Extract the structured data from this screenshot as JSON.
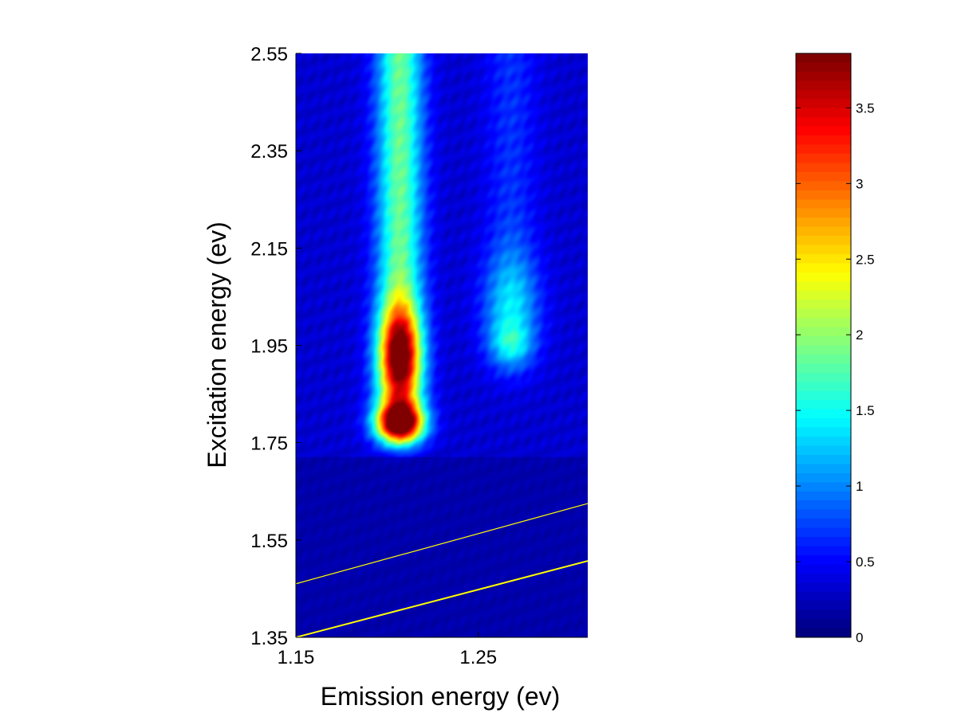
{
  "chart_data": [
    {
      "type": "heatmap",
      "title": "",
      "xlabel": "Emission energy (ev)",
      "ylabel": "Excitation energy (ev)",
      "xlim": [
        1.15,
        1.31
      ],
      "ylim": [
        1.35,
        2.55
      ],
      "xticks": [
        1.15,
        1.25
      ],
      "xtick_labels": [
        "1.15",
        "1.25"
      ],
      "yticks": [
        1.35,
        1.55,
        1.75,
        1.95,
        2.15,
        2.35,
        2.55
      ],
      "ytick_labels": [
        "1.35",
        "1.55",
        "1.75",
        "1.95",
        "2.15",
        "2.35",
        "2.55"
      ],
      "colormap": "jet",
      "background_level": 0.3,
      "features": [
        {
          "kind": "peak",
          "x": 1.207,
          "y": 1.79,
          "amplitude": 3.6,
          "sigma_x": 0.009,
          "sigma_y": 0.028
        },
        {
          "kind": "peak",
          "x": 1.207,
          "y": 1.93,
          "amplitude": 2.6,
          "sigma_x": 0.008,
          "sigma_y": 0.07
        },
        {
          "kind": "vertical_band",
          "x": 1.207,
          "y_from": 1.72,
          "y_to": 2.55,
          "amplitude": 1.55,
          "sigma_x": 0.009
        },
        {
          "kind": "peak",
          "x": 1.268,
          "y": 2.03,
          "amplitude": 0.75,
          "sigma_x": 0.011,
          "sigma_y": 0.08
        },
        {
          "kind": "peak",
          "x": 1.268,
          "y": 1.95,
          "amplitude": 0.6,
          "sigma_x": 0.008,
          "sigma_y": 0.03
        },
        {
          "kind": "vertical_band",
          "x": 1.268,
          "y_from": 1.85,
          "y_to": 2.55,
          "amplitude": 0.35,
          "sigma_x": 0.01
        }
      ],
      "lines": [
        {
          "x": [
            1.15,
            1.31
          ],
          "y": [
            1.46,
            1.625
          ],
          "color": "#ffff00"
        },
        {
          "x": [
            1.15,
            1.31
          ],
          "y": [
            1.35,
            1.507
          ],
          "color": "#ffff00"
        }
      ]
    },
    {
      "type": "colorbar",
      "lim": [
        0,
        3.86
      ],
      "ticks": [
        0,
        0.5,
        1,
        1.5,
        2,
        2.5,
        3,
        3.5
      ],
      "tick_labels": [
        "0",
        "0.5",
        "1",
        "1.5",
        "2",
        "2.5",
        "3",
        "3.5"
      ],
      "colormap": "jet"
    }
  ]
}
